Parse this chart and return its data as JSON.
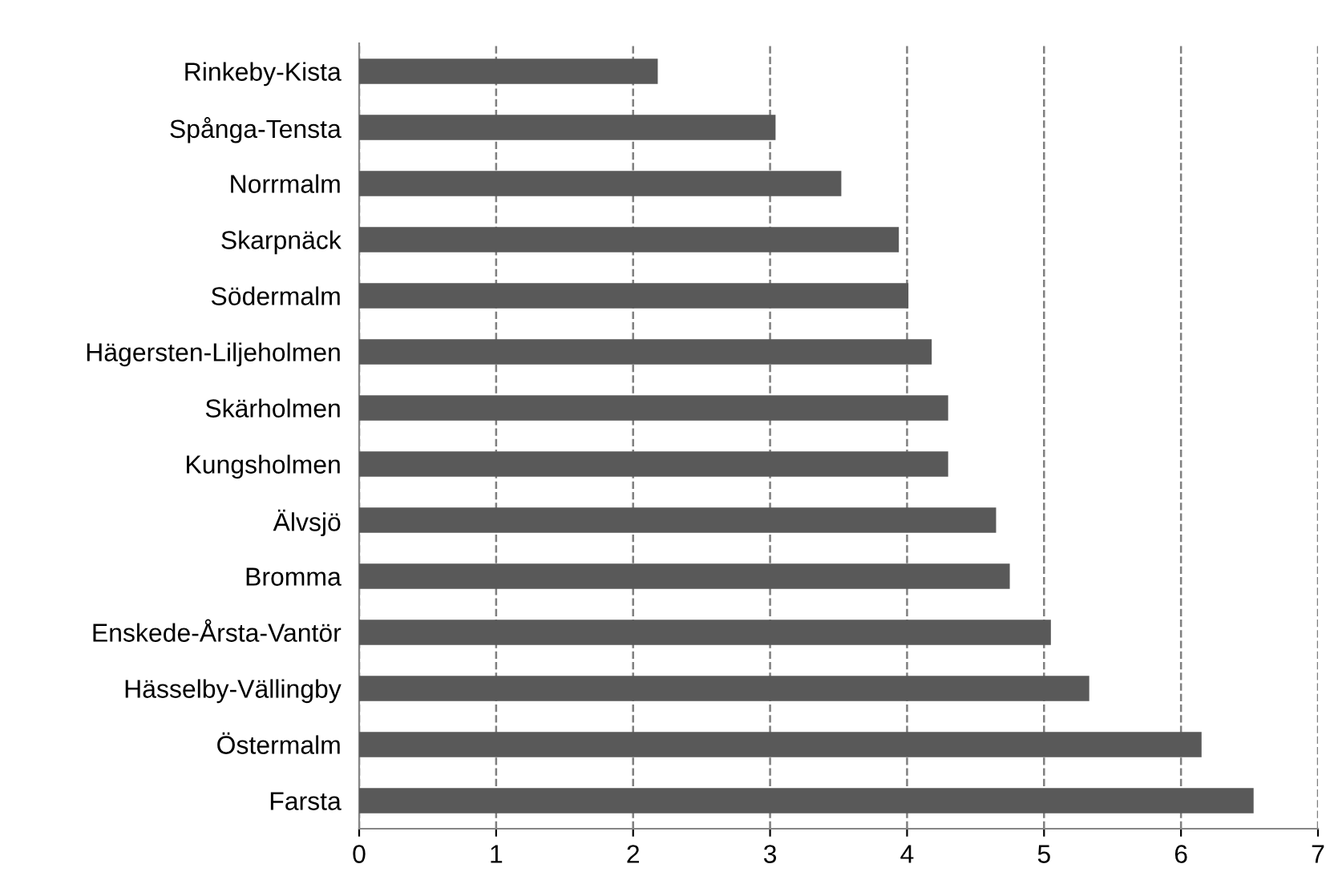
{
  "chart_data": {
    "type": "bar",
    "orientation": "horizontal",
    "categories": [
      "Rinkeby-Kista",
      "Spånga-Tensta",
      "Norrmalm",
      "Skarpnäck",
      "Södermalm",
      "Hägersten-Liljeholmen",
      "Skärholmen",
      "Kungsholmen",
      "Älvsjö",
      "Bromma",
      "Enskede-Årsta-Vantör",
      "Hässelby-Vällingby",
      "Östermalm",
      "Farsta"
    ],
    "values": [
      2.18,
      3.04,
      3.52,
      3.94,
      4.01,
      4.18,
      4.3,
      4.3,
      4.65,
      4.75,
      5.05,
      5.33,
      6.15,
      6.53
    ],
    "color": "#595959",
    "xlim": [
      0,
      7
    ],
    "xticks": [
      0,
      1,
      2,
      3,
      4,
      5,
      6,
      7
    ],
    "grid": "x",
    "line_style": "dashed"
  }
}
